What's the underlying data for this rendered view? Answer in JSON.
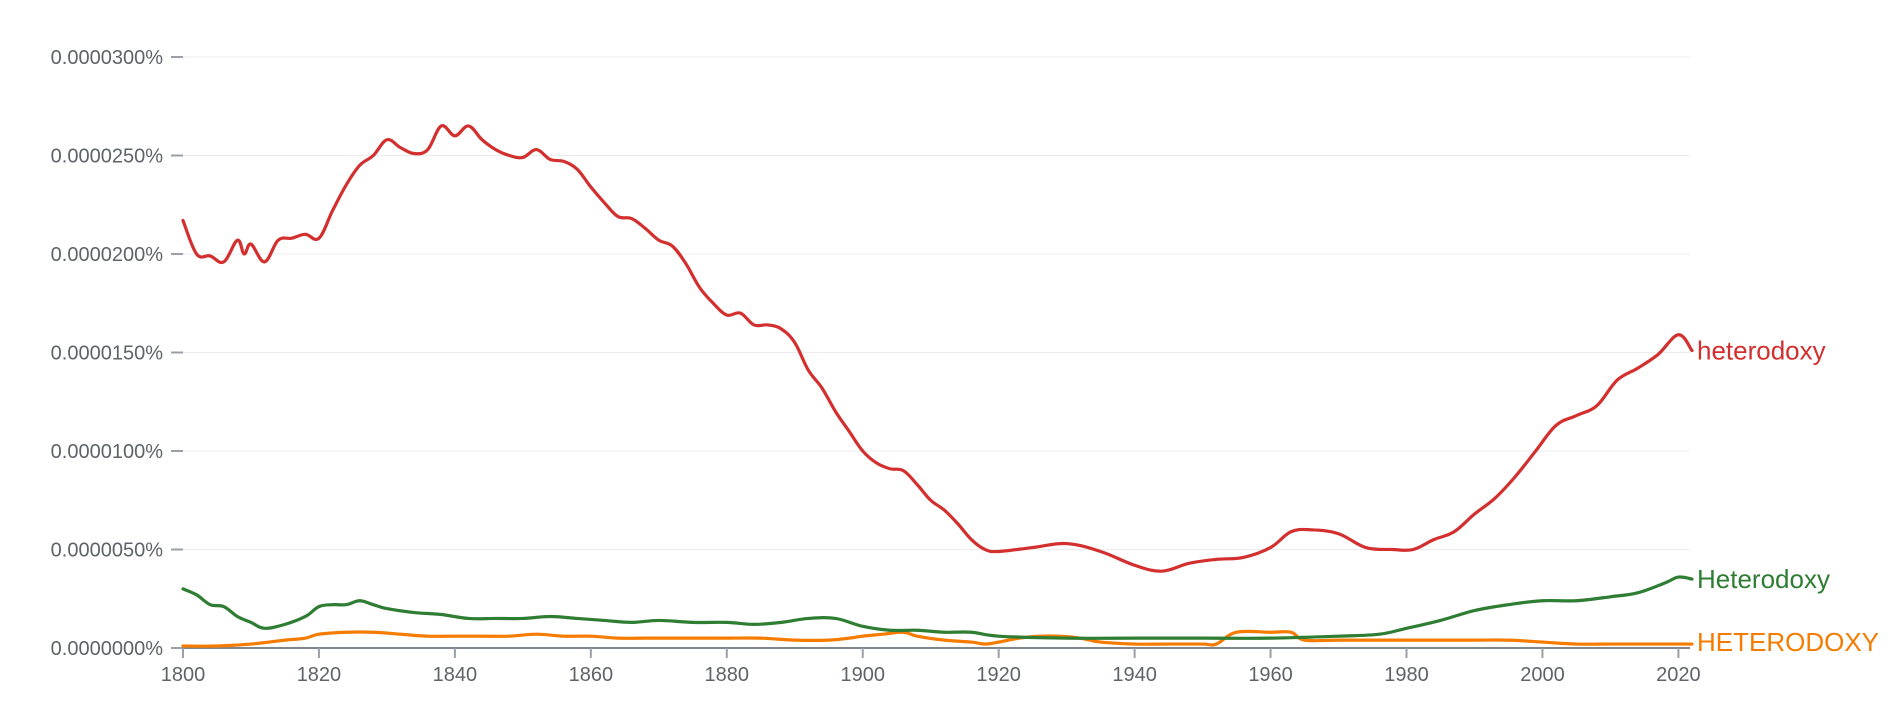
{
  "chart_data": {
    "type": "line",
    "xlim": [
      1800,
      2022
    ],
    "ylim": [
      0,
      3e-05
    ],
    "y_unit": "%",
    "y_ticks": [
      {
        "value": 0.0,
        "label": "0.0000000%"
      },
      {
        "value": 5e-06,
        "label": "0.0000050%"
      },
      {
        "value": 1e-05,
        "label": "0.0000100%"
      },
      {
        "value": 1.5e-05,
        "label": "0.0000150%"
      },
      {
        "value": 2e-05,
        "label": "0.0000200%"
      },
      {
        "value": 2.5e-05,
        "label": "0.0000250%"
      },
      {
        "value": 3e-05,
        "label": "0.0000300%"
      }
    ],
    "x_ticks": [
      {
        "value": 1800,
        "label": "1800"
      },
      {
        "value": 1820,
        "label": "1820"
      },
      {
        "value": 1840,
        "label": "1840"
      },
      {
        "value": 1860,
        "label": "1860"
      },
      {
        "value": 1880,
        "label": "1880"
      },
      {
        "value": 1900,
        "label": "1900"
      },
      {
        "value": 1920,
        "label": "1920"
      },
      {
        "value": 1940,
        "label": "1940"
      },
      {
        "value": 1960,
        "label": "1960"
      },
      {
        "value": 1980,
        "label": "1980"
      },
      {
        "value": 2000,
        "label": "2000"
      },
      {
        "value": 2020,
        "label": "2020"
      }
    ],
    "grid": true,
    "legend": "inline at line ends",
    "series": [
      {
        "name": "heterodoxy",
        "color": "#d32f2f",
        "x": [
          1800,
          1802,
          1804,
          1806,
          1808,
          1809,
          1810,
          1812,
          1814,
          1816,
          1818,
          1820,
          1822,
          1824,
          1826,
          1828,
          1830,
          1832,
          1834,
          1836,
          1838,
          1840,
          1842,
          1844,
          1846,
          1848,
          1850,
          1852,
          1854,
          1856,
          1858,
          1860,
          1862,
          1864,
          1866,
          1868,
          1870,
          1872,
          1874,
          1876,
          1878,
          1880,
          1882,
          1884,
          1886,
          1888,
          1890,
          1892,
          1894,
          1896,
          1898,
          1900,
          1902,
          1904,
          1906,
          1908,
          1910,
          1912,
          1914,
          1916,
          1918,
          1920,
          1925,
          1930,
          1935,
          1940,
          1944,
          1948,
          1952,
          1956,
          1960,
          1963,
          1966,
          1970,
          1974,
          1978,
          1981,
          1984,
          1987,
          1990,
          1993,
          1996,
          1999,
          2002,
          2005,
          2008,
          2011,
          2014,
          2017,
          2020,
          2022
        ],
        "y": [
          2.17e-05,
          2e-05,
          1.99e-05,
          1.96e-05,
          2.07e-05,
          2e-05,
          2.05e-05,
          1.96e-05,
          2.07e-05,
          2.08e-05,
          2.1e-05,
          2.08e-05,
          2.22e-05,
          2.35e-05,
          2.45e-05,
          2.5e-05,
          2.58e-05,
          2.54e-05,
          2.51e-05,
          2.53e-05,
          2.65e-05,
          2.6e-05,
          2.65e-05,
          2.58e-05,
          2.53e-05,
          2.5e-05,
          2.49e-05,
          2.53e-05,
          2.48e-05,
          2.47e-05,
          2.43e-05,
          2.34e-05,
          2.26e-05,
          2.19e-05,
          2.18e-05,
          2.13e-05,
          2.07e-05,
          2.04e-05,
          1.95e-05,
          1.83e-05,
          1.75e-05,
          1.69e-05,
          1.7e-05,
          1.64e-05,
          1.64e-05,
          1.62e-05,
          1.55e-05,
          1.41e-05,
          1.32e-05,
          1.2e-05,
          1.1e-05,
          1e-05,
          9.4e-06,
          9.1e-06,
          9e-06,
          8.3e-06,
          7.5e-06,
          7e-06,
          6.3e-06,
          5.5e-06,
          5e-06,
          4.9e-06,
          5.1e-06,
          5.3e-06,
          4.9e-06,
          4.2e-06,
          3.9e-06,
          4.3e-06,
          4.5e-06,
          4.6e-06,
          5.1e-06,
          5.9e-06,
          6e-06,
          5.8e-06,
          5.1e-06,
          5e-06,
          5e-06,
          5.5e-06,
          5.9e-06,
          6.8e-06,
          7.6e-06,
          8.7e-06,
          1e-05,
          1.13e-05,
          1.18e-05,
          1.23e-05,
          1.36e-05,
          1.42e-05,
          1.49e-05,
          1.59e-05,
          1.51e-05
        ]
      },
      {
        "name": "Heterodoxy",
        "color": "#2e7d32",
        "x": [
          1800,
          1802,
          1804,
          1806,
          1808,
          1810,
          1812,
          1815,
          1818,
          1820,
          1822,
          1824,
          1826,
          1828,
          1830,
          1834,
          1838,
          1842,
          1846,
          1850,
          1854,
          1858,
          1862,
          1866,
          1870,
          1875,
          1880,
          1884,
          1888,
          1892,
          1896,
          1900,
          1904,
          1908,
          1912,
          1916,
          1920,
          1930,
          1940,
          1950,
          1960,
          1970,
          1976,
          1980,
          1985,
          1990,
          1995,
          2000,
          2005,
          2010,
          2014,
          2018,
          2020,
          2022
        ],
        "y": [
          3e-06,
          2.7e-06,
          2.2e-06,
          2.1e-06,
          1.6e-06,
          1.3e-06,
          1e-06,
          1.2e-06,
          1.6e-06,
          2.1e-06,
          2.2e-06,
          2.2e-06,
          2.4e-06,
          2.2e-06,
          2e-06,
          1.8e-06,
          1.7e-06,
          1.5e-06,
          1.5e-06,
          1.5e-06,
          1.6e-06,
          1.5e-06,
          1.4e-06,
          1.3e-06,
          1.4e-06,
          1.3e-06,
          1.3e-06,
          1.2e-06,
          1.3e-06,
          1.5e-06,
          1.5e-06,
          1.1e-06,
          9e-07,
          9e-07,
          8e-07,
          8e-07,
          6e-07,
          5e-07,
          5e-07,
          5e-07,
          5e-07,
          6e-07,
          7e-07,
          1e-06,
          1.4e-06,
          1.9e-06,
          2.2e-06,
          2.4e-06,
          2.4e-06,
          2.6e-06,
          2.8e-06,
          3.3e-06,
          3.6e-06,
          3.5e-06
        ]
      },
      {
        "name": "HETERODOXY",
        "color": "#f57c00",
        "x": [
          1800,
          1805,
          1810,
          1815,
          1818,
          1820,
          1824,
          1828,
          1832,
          1836,
          1840,
          1844,
          1848,
          1852,
          1856,
          1860,
          1864,
          1868,
          1872,
          1876,
          1880,
          1885,
          1890,
          1895,
          1898,
          1900,
          1903,
          1906,
          1908,
          1912,
          1916,
          1918,
          1920,
          1923,
          1926,
          1929,
          1932,
          1935,
          1940,
          1945,
          1950,
          1952,
          1955,
          1960,
          1963,
          1965,
          1970,
          1975,
          1980,
          1985,
          1990,
          1995,
          2000,
          2005,
          2010,
          2015,
          2022
        ],
        "y": [
          1e-07,
          1e-07,
          2e-07,
          4e-07,
          5e-07,
          7e-07,
          8e-07,
          8e-07,
          7e-07,
          6e-07,
          6e-07,
          6e-07,
          6e-07,
          7e-07,
          6e-07,
          6e-07,
          5e-07,
          5e-07,
          5e-07,
          5e-07,
          5e-07,
          5e-07,
          4e-07,
          4e-07,
          5e-07,
          6e-07,
          7e-07,
          8e-07,
          6e-07,
          4e-07,
          3e-07,
          2e-07,
          3e-07,
          5e-07,
          6e-07,
          6e-07,
          5e-07,
          3e-07,
          2e-07,
          2e-07,
          2e-07,
          2e-07,
          8e-07,
          8e-07,
          8e-07,
          4e-07,
          4e-07,
          4e-07,
          4e-07,
          4e-07,
          4e-07,
          4e-07,
          3e-07,
          2e-07,
          2e-07,
          2e-07,
          2e-07
        ]
      }
    ]
  }
}
